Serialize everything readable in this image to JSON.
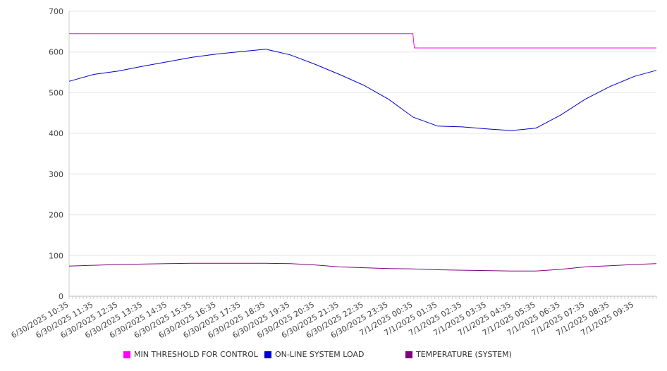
{
  "chart_data": {
    "type": "line",
    "y_ticks": [
      0,
      100,
      200,
      300,
      400,
      500,
      600,
      700
    ],
    "ylim": [
      0,
      700
    ],
    "x_tick_labels": [
      "6/30/2025 10:35",
      "6/30/2025 11:35",
      "6/30/2025 12:35",
      "6/30/2025 13:35",
      "6/30/2025 14:35",
      "6/30/2025 15:35",
      "6/30/2025 16:35",
      "6/30/2025 17:35",
      "6/30/2025 18:35",
      "6/30/2025 19:35",
      "6/30/2025 20:35",
      "6/30/2025 21:35",
      "6/30/2025 22:35",
      "6/30/2025 23:35",
      "7/1/2025 00:35",
      "7/1/2025 01:35",
      "7/1/2025 02:35",
      "7/1/2025 03:35",
      "7/1/2025 04:35",
      "7/1/2025 05:35",
      "7/1/2025 06:35",
      "7/1/2025 07:35",
      "7/1/2025 08:35",
      "7/1/2025 09:35"
    ],
    "x_points": [
      "6/30/2025 10:35",
      "6/30/2025 11:35",
      "6/30/2025 12:35",
      "6/30/2025 13:35",
      "6/30/2025 14:35",
      "6/30/2025 15:35",
      "6/30/2025 16:35",
      "6/30/2025 17:35",
      "6/30/2025 18:35",
      "6/30/2025 19:35",
      "6/30/2025 20:35",
      "6/30/2025 21:35",
      "6/30/2025 22:35",
      "6/30/2025 23:35",
      "7/1/2025 00:35",
      "7/1/2025 01:35",
      "7/1/2025 02:35",
      "7/1/2025 03:35",
      "7/1/2025 04:35",
      "7/1/2025 05:35",
      "7/1/2025 06:35",
      "7/1/2025 07:35",
      "7/1/2025 08:35",
      "7/1/2025 09:35",
      "7/1/2025 10:30"
    ],
    "grid": true,
    "legend_position": "bottom",
    "series": [
      {
        "name": "MIN THRESHOLD FOR CONTROL",
        "color": "#ff00ff",
        "step": true,
        "values": [
          645,
          645,
          645,
          645,
          645,
          645,
          645,
          645,
          645,
          645,
          645,
          645,
          645,
          645,
          610,
          610,
          610,
          610,
          610,
          610,
          610,
          610,
          610,
          610,
          610
        ]
      },
      {
        "name": "ON-LINE SYSTEM LOAD",
        "color": "#0000cc",
        "values": [
          528,
          545,
          553,
          565,
          576,
          587,
          595,
          601,
          607,
          593,
          570,
          545,
          518,
          484,
          440,
          418,
          416,
          411,
          407,
          413,
          445,
          484,
          515,
          540,
          555
        ]
      },
      {
        "name": "TEMPERATURE (SYSTEM)",
        "color": "#800080",
        "values": [
          74,
          76,
          78,
          79,
          80,
          81,
          81,
          81,
          81,
          80,
          77,
          72,
          70,
          68,
          67,
          65,
          64,
          63,
          62,
          62,
          66,
          72,
          75,
          78,
          80
        ]
      }
    ]
  }
}
